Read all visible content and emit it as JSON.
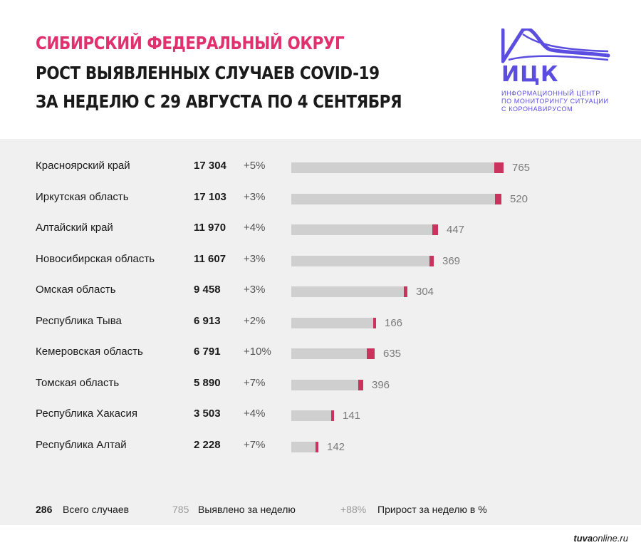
{
  "header": {
    "title_line1": "СИБИРСКИЙ ФЕДЕРАЛЬНЫЙ ОКРУГ",
    "title_line2": "РОСТ ВЫЯВЛЕННЫХ СЛУЧАЕВ COVID-19",
    "title_line3": "ЗА НЕДЕЛЮ С 29 АВГУСТА ПО 4 СЕНТЯБРЯ"
  },
  "logo": {
    "name": "ИЦК",
    "sub_line1": "ИНФОРМАЦИОННЫЙ ЦЕНТР",
    "sub_line2": "ПО МОНИТОРИНГУ СИТУАЦИИ",
    "sub_line3": "С КОРОНАВИРУСОМ",
    "color": "#5a4de0"
  },
  "colors": {
    "accent_pink": "#e0306e",
    "bar_total": "#cfcfcf",
    "bar_new": "#c9335e",
    "panel_bg": "#f0f0f0"
  },
  "chart_data": {
    "type": "bar",
    "orientation": "horizontal",
    "xlim": [
      0,
      18000
    ],
    "rows": [
      {
        "region": "Красноярский край",
        "total_label": "17 304",
        "total": 17304,
        "growth": "+5%",
        "weekly": 765
      },
      {
        "region": "Иркутская область",
        "total_label": "17 103",
        "total": 17103,
        "growth": "+3%",
        "weekly": 520
      },
      {
        "region": "Алтайский край",
        "total_label": "11 970",
        "total": 11970,
        "growth": "+4%",
        "weekly": 447
      },
      {
        "region": "Новосибирская область",
        "total_label": "11 607",
        "total": 11607,
        "growth": "+3%",
        "weekly": 369
      },
      {
        "region": "Омская область",
        "total_label": "9 458",
        "total": 9458,
        "growth": "+3%",
        "weekly": 304
      },
      {
        "region": "Республика Тыва",
        "total_label": "6 913",
        "total": 6913,
        "growth": "+2%",
        "weekly": 166
      },
      {
        "region": "Кемеровская область",
        "total_label": "6 791",
        "total": 6791,
        "growth": "+10%",
        "weekly": 635
      },
      {
        "region": "Томская область",
        "total_label": "5 890",
        "total": 5890,
        "growth": "+7%",
        "weekly": 396
      },
      {
        "region": "Республика Хакасия",
        "total_label": "3 503",
        "total": 3503,
        "growth": "+4%",
        "weekly": 141
      },
      {
        "region": "Республика Алтай",
        "total_label": "2 228",
        "total": 2228,
        "growth": "+7%",
        "weekly": 142
      }
    ]
  },
  "legend": {
    "total_value": "286",
    "total_label": "Всего случаев",
    "weekly_value": "785",
    "weekly_label": "Выявлено за неделю",
    "growth_value": "+88%",
    "growth_label": "Прирост за неделю в %"
  },
  "source": {
    "bold": "tuva",
    "rest": "online.ru"
  }
}
